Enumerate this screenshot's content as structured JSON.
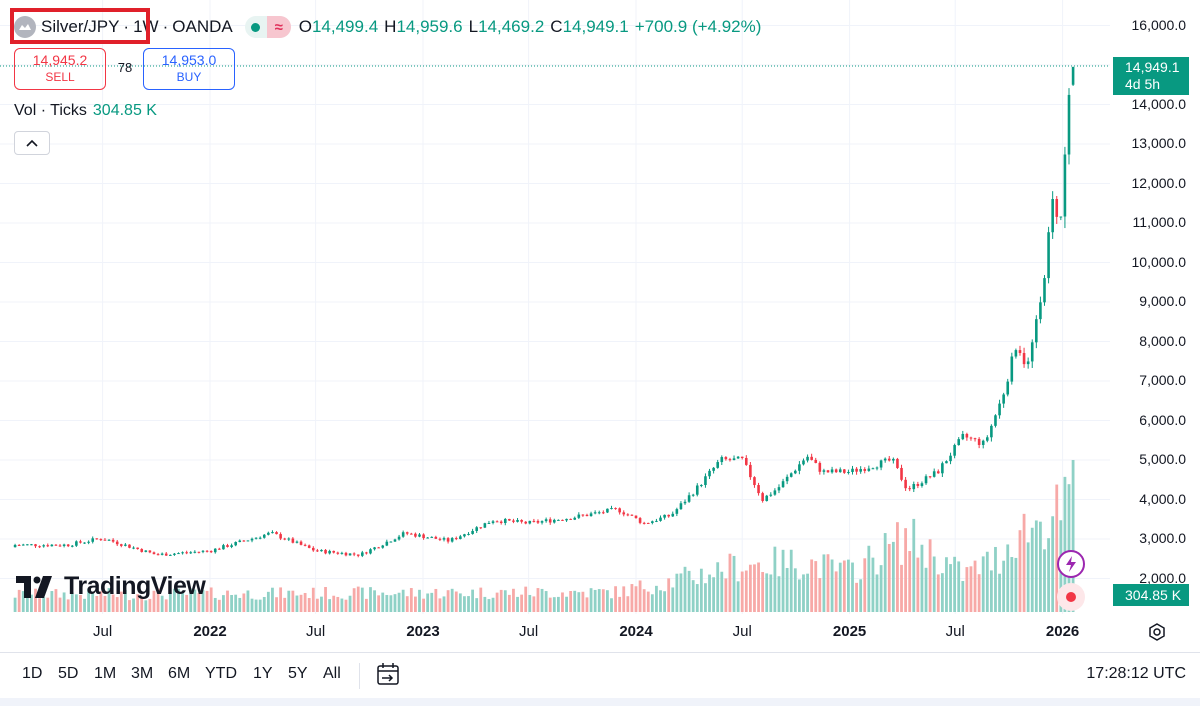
{
  "symbol": {
    "name": "Silver/JPY",
    "sep1": "·",
    "interval": "1W",
    "sep2": "·",
    "exchange": "OANDA",
    "market_icon": "silver-coin-icon"
  },
  "ohlc": {
    "open_key": "O",
    "open": "14,499.4",
    "high_key": "H",
    "high": "14,959.6",
    "low_key": "L",
    "low": "14,469.2",
    "close_key": "C",
    "close": "14,949.1",
    "change": "+700.9 (+4.92%)"
  },
  "trade": {
    "sell_price": "14,945.2",
    "sell_label": "SELL",
    "spread": "78",
    "buy_price": "14,953.0",
    "buy_label": "BUY"
  },
  "volume_legend": {
    "label": "Vol · Ticks",
    "value": "304.85 K"
  },
  "logo_text": "TradingView",
  "price_tag": {
    "price": "14,949.1",
    "countdown": "4d 5h"
  },
  "volume_tag": "304.85 K",
  "bottom_bar": {
    "ranges": [
      "1D",
      "5D",
      "1M",
      "3M",
      "6M",
      "YTD",
      "1Y",
      "5Y",
      "All"
    ],
    "clock": "17:28:12 UTC"
  },
  "colors": {
    "up": "#089981",
    "down": "#f23645",
    "vol_up": "#8fd1c6",
    "vol_down": "#f7a9a7"
  },
  "chart_data": {
    "type": "candlestick",
    "interval": "weekly",
    "y_axis_ticks": [
      "2,000.0",
      "3,000.0",
      "4,000.0",
      "5,000.0",
      "6,000.0",
      "7,000.0",
      "8,000.0",
      "9,000.0",
      "10,000.0",
      "11,000.0",
      "12,000.0",
      "13,000.0",
      "14,000.0",
      "15,000.0",
      "16,000.0"
    ],
    "ylim": [
      1100,
      16550
    ],
    "x_axis_ticks": [
      {
        "label": "Jul",
        "date": "2021-07-01"
      },
      {
        "label": "2022",
        "date": "2022-01-01"
      },
      {
        "label": "Jul",
        "date": "2022-07-01"
      },
      {
        "label": "2023",
        "date": "2023-01-01"
      },
      {
        "label": "Jul",
        "date": "2023-07-01"
      },
      {
        "label": "2024",
        "date": "2024-01-01"
      },
      {
        "label": "Jul",
        "date": "2024-07-01"
      },
      {
        "label": "2025",
        "date": "2025-01-01"
      },
      {
        "label": "Jul",
        "date": "2025-07-01"
      },
      {
        "label": "2026",
        "date": "2026-01-01"
      }
    ],
    "close_keypoints": [
      {
        "date": "2021-02-01",
        "close": 2850
      },
      {
        "date": "2021-05-01",
        "close": 2850
      },
      {
        "date": "2021-07-01",
        "close": 3020
      },
      {
        "date": "2021-10-01",
        "close": 2600
      },
      {
        "date": "2022-01-01",
        "close": 2700
      },
      {
        "date": "2022-04-15",
        "close": 3150
      },
      {
        "date": "2022-07-01",
        "close": 2700
      },
      {
        "date": "2022-09-15",
        "close": 2600
      },
      {
        "date": "2022-12-01",
        "close": 3150
      },
      {
        "date": "2023-02-15",
        "close": 2950
      },
      {
        "date": "2023-05-01",
        "close": 3480
      },
      {
        "date": "2023-07-01",
        "close": 3400
      },
      {
        "date": "2023-09-15",
        "close": 3550
      },
      {
        "date": "2023-12-01",
        "close": 3750
      },
      {
        "date": "2024-01-15",
        "close": 3400
      },
      {
        "date": "2024-03-01",
        "close": 3600
      },
      {
        "date": "2024-04-15",
        "close": 4300
      },
      {
        "date": "2024-05-25",
        "close": 5000
      },
      {
        "date": "2024-07-01",
        "close": 5000
      },
      {
        "date": "2024-08-05",
        "close": 4000
      },
      {
        "date": "2024-09-01",
        "close": 4300
      },
      {
        "date": "2024-10-20",
        "close": 5100
      },
      {
        "date": "2024-11-15",
        "close": 4700
      },
      {
        "date": "2025-01-01",
        "close": 4700
      },
      {
        "date": "2025-03-15",
        "close": 5000
      },
      {
        "date": "2025-04-10",
        "close": 4250
      },
      {
        "date": "2025-06-01",
        "close": 4700
      },
      {
        "date": "2025-07-15",
        "close": 5600
      },
      {
        "date": "2025-08-20",
        "close": 5400
      },
      {
        "date": "2025-09-20",
        "close": 6600
      },
      {
        "date": "2025-10-15",
        "close": 8000
      },
      {
        "date": "2025-11-01",
        "close": 7300
      },
      {
        "date": "2025-11-25",
        "close": 9000
      },
      {
        "date": "2025-12-15",
        "close": 11500
      },
      {
        "date": "2025-12-29",
        "close": 11100
      },
      {
        "date": "2026-01-05",
        "close": 12700
      },
      {
        "date": "2026-01-12",
        "close": 14250
      },
      {
        "date": "2026-01-19",
        "close": 14949.1
      }
    ],
    "last_candle": {
      "open": 14499.4,
      "high": 14959.6,
      "low": 14469.2,
      "close": 14949.1
    },
    "volume_k": [
      {
        "date": "2021-02-01",
        "v": 35
      },
      {
        "date": "2023-12-01",
        "v": 40
      },
      {
        "date": "2024-04-01",
        "v": 70
      },
      {
        "date": "2024-07-01",
        "v": 95
      },
      {
        "date": "2024-10-15",
        "v": 100
      },
      {
        "date": "2025-01-01",
        "v": 80
      },
      {
        "date": "2025-04-10",
        "v": 150
      },
      {
        "date": "2025-07-15",
        "v": 75
      },
      {
        "date": "2025-09-15",
        "v": 110
      },
      {
        "date": "2025-10-15",
        "v": 160
      },
      {
        "date": "2025-12-15",
        "v": 190
      },
      {
        "date": "2026-01-12",
        "v": 215
      },
      {
        "date": "2026-01-19",
        "v": 304.85
      }
    ]
  }
}
